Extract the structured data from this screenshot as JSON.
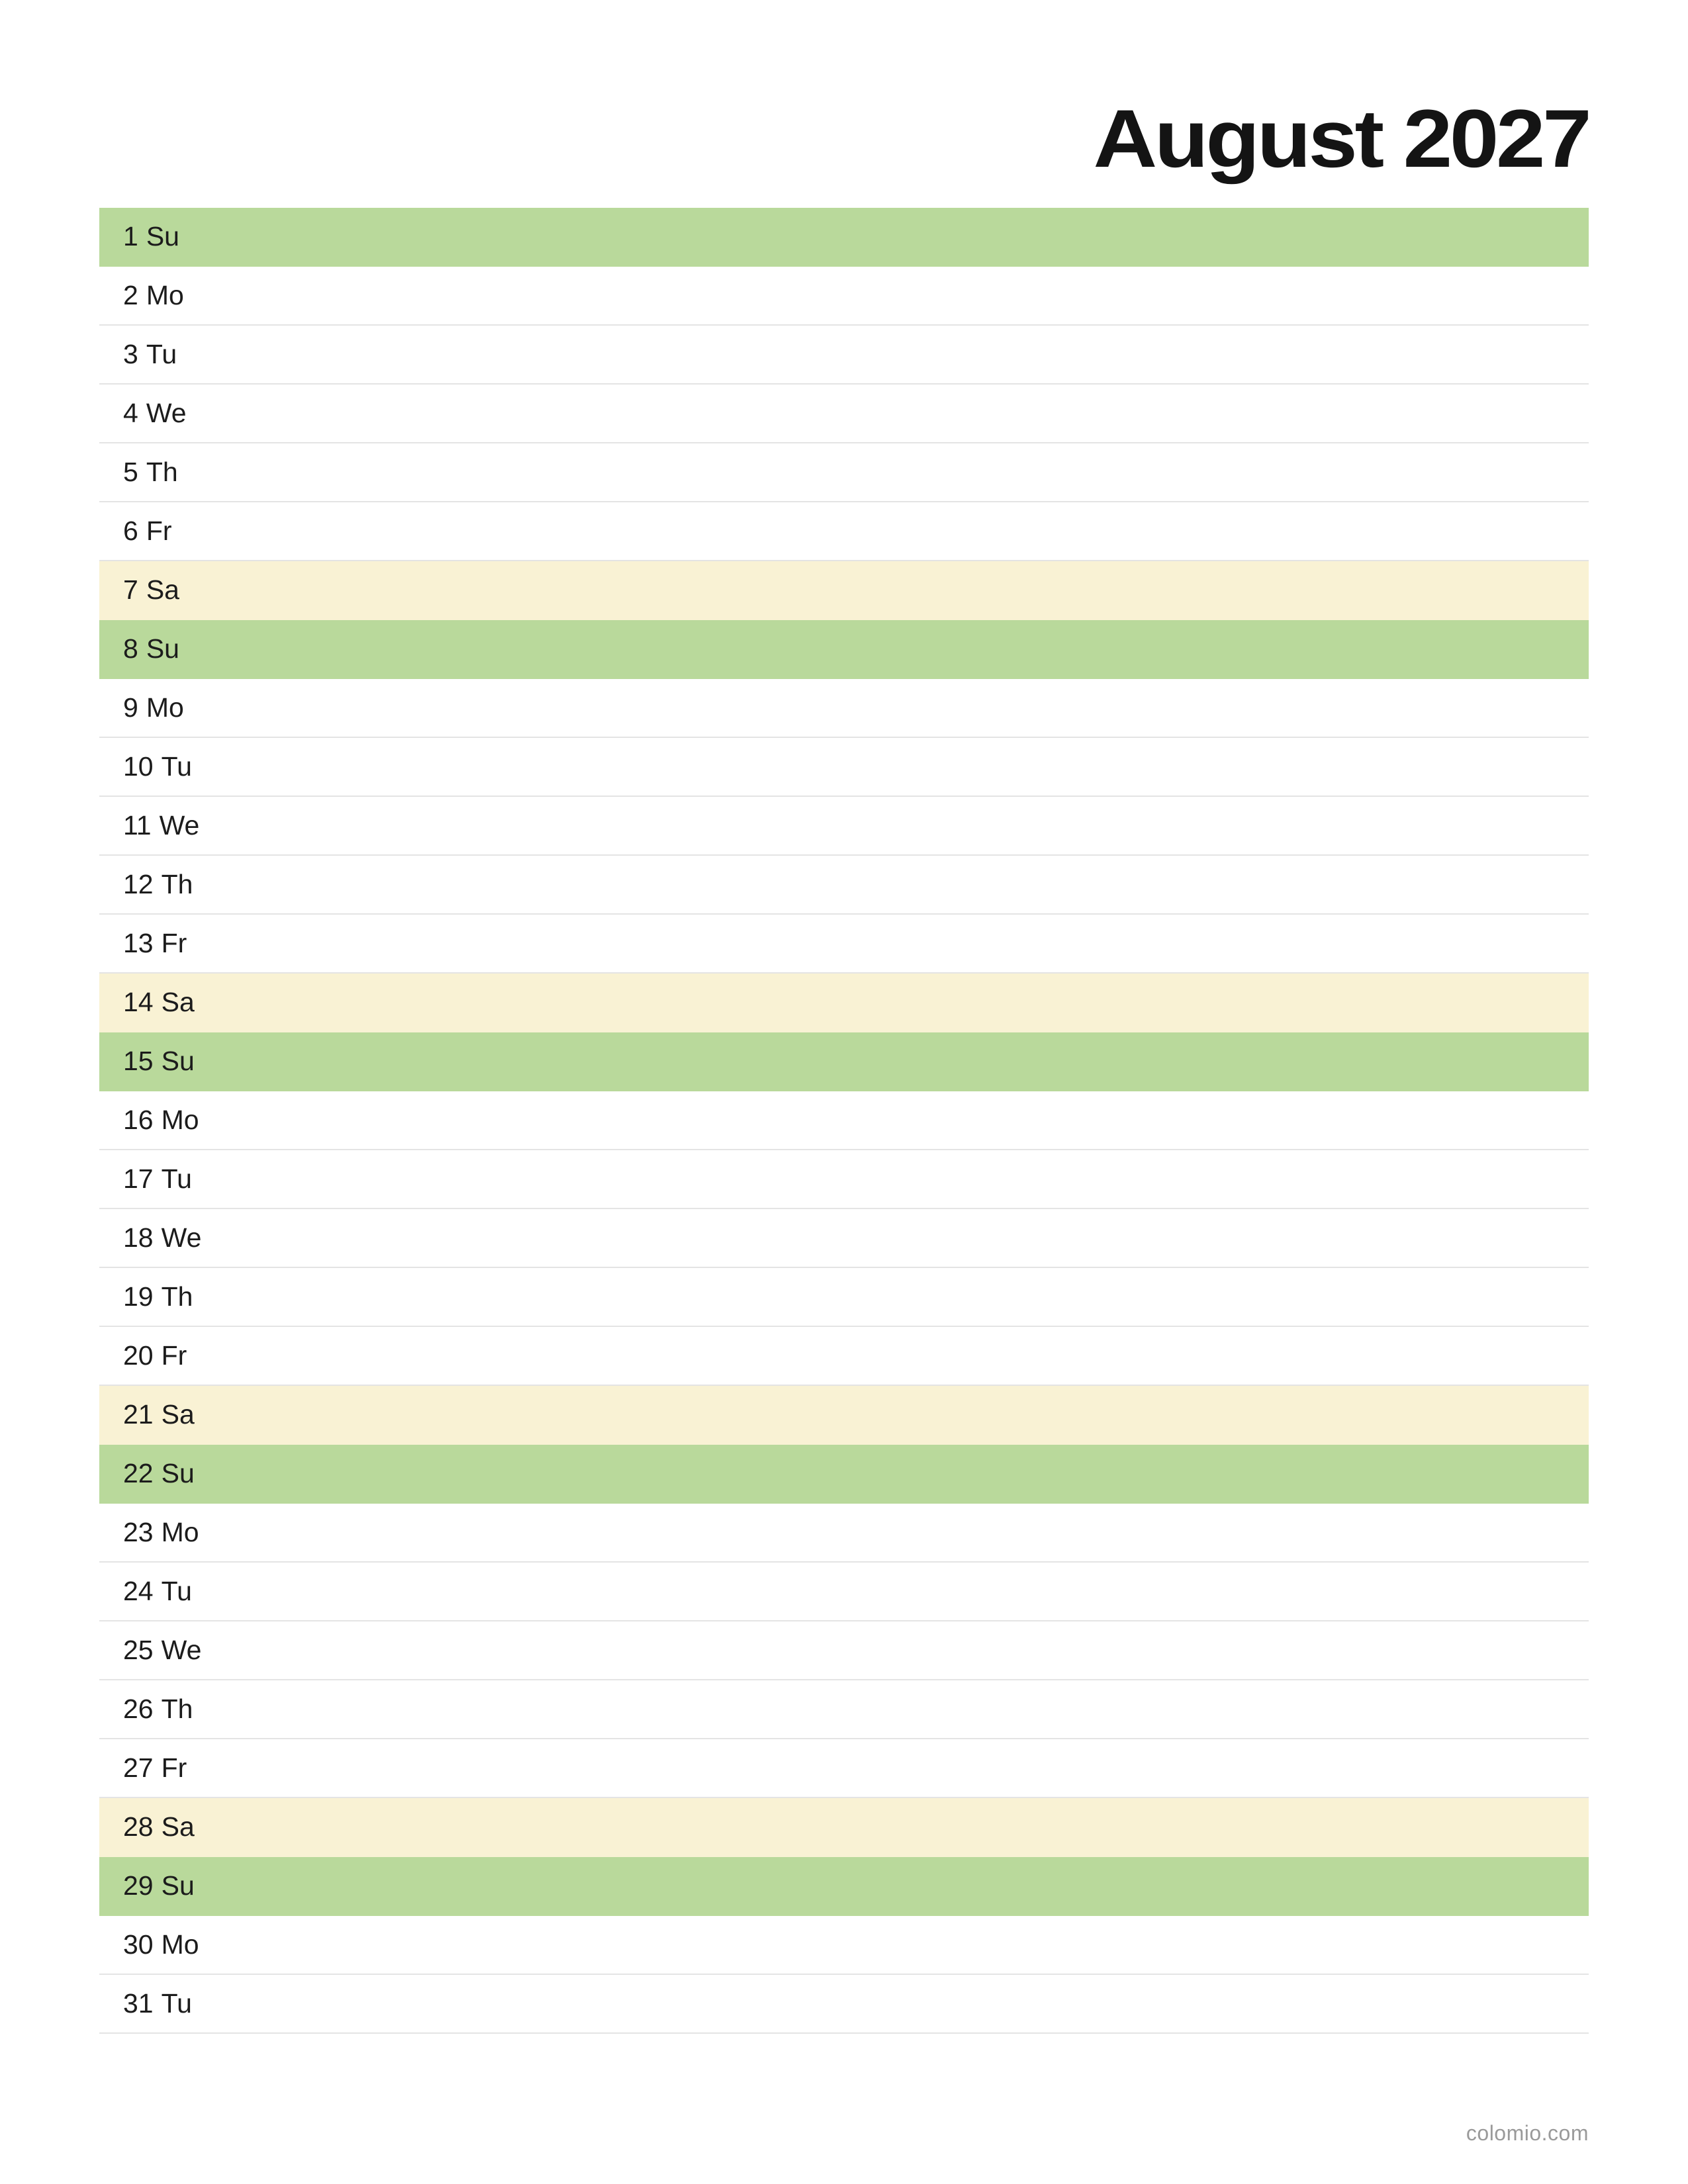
{
  "header": {
    "title": "August 2027"
  },
  "colors": {
    "sunday": "#b9d99b",
    "saturday": "#f9f2d4",
    "weekday": "#ffffff"
  },
  "days": [
    {
      "num": "1",
      "dow": "Su",
      "type": "su"
    },
    {
      "num": "2",
      "dow": "Mo",
      "type": "wd"
    },
    {
      "num": "3",
      "dow": "Tu",
      "type": "wd"
    },
    {
      "num": "4",
      "dow": "We",
      "type": "wd"
    },
    {
      "num": "5",
      "dow": "Th",
      "type": "wd"
    },
    {
      "num": "6",
      "dow": "Fr",
      "type": "wd"
    },
    {
      "num": "7",
      "dow": "Sa",
      "type": "sa"
    },
    {
      "num": "8",
      "dow": "Su",
      "type": "su"
    },
    {
      "num": "9",
      "dow": "Mo",
      "type": "wd"
    },
    {
      "num": "10",
      "dow": "Tu",
      "type": "wd"
    },
    {
      "num": "11",
      "dow": "We",
      "type": "wd"
    },
    {
      "num": "12",
      "dow": "Th",
      "type": "wd"
    },
    {
      "num": "13",
      "dow": "Fr",
      "type": "wd"
    },
    {
      "num": "14",
      "dow": "Sa",
      "type": "sa"
    },
    {
      "num": "15",
      "dow": "Su",
      "type": "su"
    },
    {
      "num": "16",
      "dow": "Mo",
      "type": "wd"
    },
    {
      "num": "17",
      "dow": "Tu",
      "type": "wd"
    },
    {
      "num": "18",
      "dow": "We",
      "type": "wd"
    },
    {
      "num": "19",
      "dow": "Th",
      "type": "wd"
    },
    {
      "num": "20",
      "dow": "Fr",
      "type": "wd"
    },
    {
      "num": "21",
      "dow": "Sa",
      "type": "sa"
    },
    {
      "num": "22",
      "dow": "Su",
      "type": "su"
    },
    {
      "num": "23",
      "dow": "Mo",
      "type": "wd"
    },
    {
      "num": "24",
      "dow": "Tu",
      "type": "wd"
    },
    {
      "num": "25",
      "dow": "We",
      "type": "wd"
    },
    {
      "num": "26",
      "dow": "Th",
      "type": "wd"
    },
    {
      "num": "27",
      "dow": "Fr",
      "type": "wd"
    },
    {
      "num": "28",
      "dow": "Sa",
      "type": "sa"
    },
    {
      "num": "29",
      "dow": "Su",
      "type": "su"
    },
    {
      "num": "30",
      "dow": "Mo",
      "type": "wd"
    },
    {
      "num": "31",
      "dow": "Tu",
      "type": "wd"
    }
  ],
  "footer": {
    "credit": "colomio.com"
  }
}
